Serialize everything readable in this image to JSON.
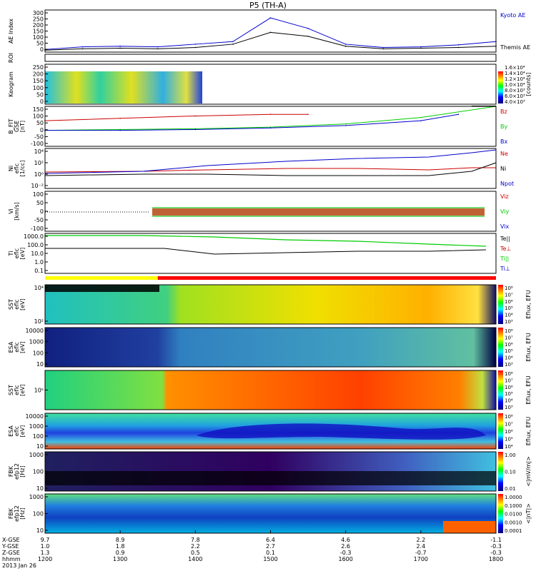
{
  "title": "P5 (TH-A)",
  "date_label": "2013 Jan 26",
  "ephemeris": {
    "labels": [
      "X-GSE",
      "Y-GSE",
      "Z-GSE",
      "hhmm"
    ],
    "columns": [
      {
        "values": [
          "9.7",
          "1.0",
          "1.3",
          "1200"
        ]
      },
      {
        "values": [
          "8.9",
          "1.8",
          "0.9",
          "1300"
        ]
      },
      {
        "values": [
          "7.8",
          "2.2",
          "0.5",
          "1400"
        ]
      },
      {
        "values": [
          "6.4",
          "2.7",
          "0.1",
          "1500"
        ]
      },
      {
        "values": [
          "4.6",
          "2.6",
          "-0.3",
          "1600"
        ]
      },
      {
        "values": [
          "2.2",
          "2.4",
          "-0.7",
          "1700"
        ]
      },
      {
        "values": [
          "-1.1",
          "-0.3",
          "-0.3",
          "1800"
        ]
      }
    ]
  },
  "colors": {
    "black": "#000000",
    "red": "#ff0000",
    "green": "#00dd00",
    "blue": "#0000cc",
    "navy": "#000080",
    "orange": "#ff8c00",
    "yellow": "#ffff00",
    "cyan": "#00ffff"
  },
  "panels": [
    {
      "id": "ae",
      "ylabel": [
        "AE Index"
      ],
      "ticks": [
        "300",
        "250",
        "200",
        "150",
        "100",
        "50",
        "0"
      ],
      "legend": [
        {
          "text": "Kyoto AE",
          "color": "#0000cc"
        },
        {
          "text": "Themis AE",
          "color": "#000000"
        }
      ]
    },
    {
      "id": "roi",
      "ylabel": [
        "ROI"
      ],
      "ticks": [],
      "legend": []
    },
    {
      "id": "keogram",
      "ylabel": [
        "Keogram"
      ],
      "ticks": [
        "250",
        "200",
        "150",
        "100",
        "50",
        "0"
      ],
      "colorbar": {
        "label": "[counts]",
        "ticks": [
          "1.6×10⁴",
          "1.4×10⁴",
          "1.2×10⁴",
          "1.0×10⁴",
          "8.0×10³",
          "6.0×10³",
          "4.0×10³"
        ]
      }
    },
    {
      "id": "bfit",
      "ylabel": [
        "B_FIT",
        "GSE",
        "[nT]"
      ],
      "ticks": [
        "150",
        "100",
        "50",
        "0",
        "-50",
        "-100"
      ],
      "legend": [
        {
          "text": "Bz",
          "color": "#cc0000"
        },
        {
          "text": "By",
          "color": "#00cc00"
        },
        {
          "text": "Bx",
          "color": "#0000cc"
        }
      ]
    },
    {
      "id": "ni",
      "ylabel": [
        "Ni",
        "eflc",
        "[1/cc]"
      ],
      "ticks": [
        "10⁴",
        "10²",
        "10⁰",
        "10⁻²"
      ],
      "legend": [
        {
          "text": "Ne",
          "color": "#cc0000"
        },
        {
          "text": "Ni",
          "color": "#000000"
        },
        {
          "text": "Npot",
          "color": "#0000cc"
        }
      ]
    },
    {
      "id": "vi",
      "ylabel": [
        "Vi",
        "[km/s]"
      ],
      "ticks": [
        "100",
        "50",
        "0",
        "-50",
        "-100"
      ],
      "legend": [
        {
          "text": "Viz",
          "color": "#cc0000"
        },
        {
          "text": "Viy",
          "color": "#00cc00"
        },
        {
          "text": "Vix",
          "color": "#0000cc"
        }
      ]
    },
    {
      "id": "ti",
      "ylabel": [
        "Ti",
        "eflc",
        "[eV]"
      ],
      "ticks": [
        "1000.0",
        "100.0",
        "10.0",
        "1.0",
        "0.1"
      ],
      "legend": [
        {
          "text": "Te||",
          "color": "#000000"
        },
        {
          "text": "Te⊥",
          "color": "#cc0000"
        },
        {
          "text": "Ti||",
          "color": "#00cc00"
        },
        {
          "text": "Ti⊥",
          "color": "#0000cc"
        }
      ]
    },
    {
      "id": "sst_e",
      "ylabel": [
        "SST",
        "eflc",
        "[eV]"
      ],
      "ticks": [
        "10⁴",
        "10²"
      ],
      "colorbar": {
        "label": "Eflux, EFU",
        "ticks": [
          "10⁸",
          "10⁷",
          "10⁶",
          "10⁵",
          "10⁴",
          "10³"
        ]
      }
    },
    {
      "id": "esa_e",
      "ylabel": [
        "ESA",
        "eflc",
        "[eV]"
      ],
      "ticks": [
        "10000",
        "1000",
        "100",
        "10"
      ],
      "colorbar": {
        "label": "Eflux, EFU",
        "ticks": [
          "10⁸",
          "10⁷",
          "10⁶",
          "10⁵",
          "10⁴",
          "10³"
        ]
      }
    },
    {
      "id": "sst_i",
      "ylabel": [
        "SST",
        "eflc",
        "[eV]"
      ],
      "ticks": [
        "10⁵"
      ],
      "colorbar": {
        "label": "Eflux, EFU",
        "ticks": [
          "10⁸",
          "10⁷",
          "10⁶",
          "10⁵",
          "10⁴",
          "10³"
        ]
      }
    },
    {
      "id": "esa_i",
      "ylabel": [
        "ESA",
        "eflc",
        "[eV]"
      ],
      "ticks": [
        "10000",
        "1000",
        "100",
        "10"
      ],
      "colorbar": {
        "label": "Eflux, EFU",
        "ticks": [
          "10⁸",
          "10⁷",
          "10⁶",
          "10⁵",
          "10⁴"
        ]
      }
    },
    {
      "id": "fbk_b",
      "ylabel": [
        "FBK",
        "efp12",
        "[Hz]"
      ],
      "ticks": [
        "1000",
        "100",
        "10"
      ],
      "colorbar": {
        "label": "<|mV/m|>",
        "ticks": [
          "1.00",
          "0.10",
          "0.01"
        ]
      }
    },
    {
      "id": "fbk_e",
      "ylabel": [
        "FBK",
        "efp12",
        "[Hz]"
      ],
      "ticks": [
        "1000",
        "100",
        "10"
      ],
      "colorbar": {
        "label": "<|nT|>",
        "ticks": [
          "1.0000",
          "0.1000",
          "0.0100",
          "0.0010",
          "0.0001"
        ]
      }
    }
  ],
  "chart_data": {
    "type": "line",
    "title": "P5 (TH-A)",
    "x_hhmm": [
      "1200",
      "1300",
      "1400",
      "1500",
      "1600",
      "1700",
      "1800"
    ],
    "ae_index": {
      "ylim": [
        0,
        320
      ],
      "series": [
        {
          "name": "Kyoto AE",
          "x": [
            "1200",
            "1230",
            "1300",
            "1330",
            "1400",
            "1430",
            "1500",
            "1530",
            "1600",
            "1630",
            "1700",
            "1730",
            "1800"
          ],
          "values": [
            20,
            40,
            45,
            40,
            60,
            80,
            260,
            180,
            60,
            35,
            40,
            55,
            80
          ]
        },
        {
          "name": "Themis AE",
          "x": [
            "1200",
            "1230",
            "1300",
            "1330",
            "1400",
            "1430",
            "1500",
            "1530",
            "1600",
            "1630",
            "1700",
            "1730",
            "1800"
          ],
          "values": [
            15,
            25,
            30,
            25,
            35,
            60,
            150,
            120,
            45,
            25,
            30,
            35,
            45
          ]
        }
      ]
    },
    "b_fit": {
      "ylim": [
        -100,
        150
      ],
      "series": [
        {
          "name": "Bz",
          "x": [
            "1200",
            "1300",
            "1400",
            "1500",
            "1530"
          ],
          "values": [
            60,
            75,
            90,
            100,
            100
          ]
        },
        {
          "name": "By",
          "x": [
            "1200",
            "1300",
            "1400",
            "1500",
            "1600",
            "1700",
            "1800"
          ],
          "values": [
            0,
            5,
            10,
            20,
            40,
            80,
            150
          ]
        },
        {
          "name": "Bx",
          "x": [
            "1200",
            "1300",
            "1400",
            "1500",
            "1600",
            "1700",
            "1730"
          ],
          "values": [
            0,
            0,
            5,
            15,
            30,
            60,
            100
          ]
        }
      ]
    },
    "time_bar_segments": [
      {
        "from": "1200",
        "to": "1330",
        "color": "#ffff00"
      },
      {
        "from": "1330",
        "to": "1800",
        "color": "#ff0000"
      }
    ]
  }
}
